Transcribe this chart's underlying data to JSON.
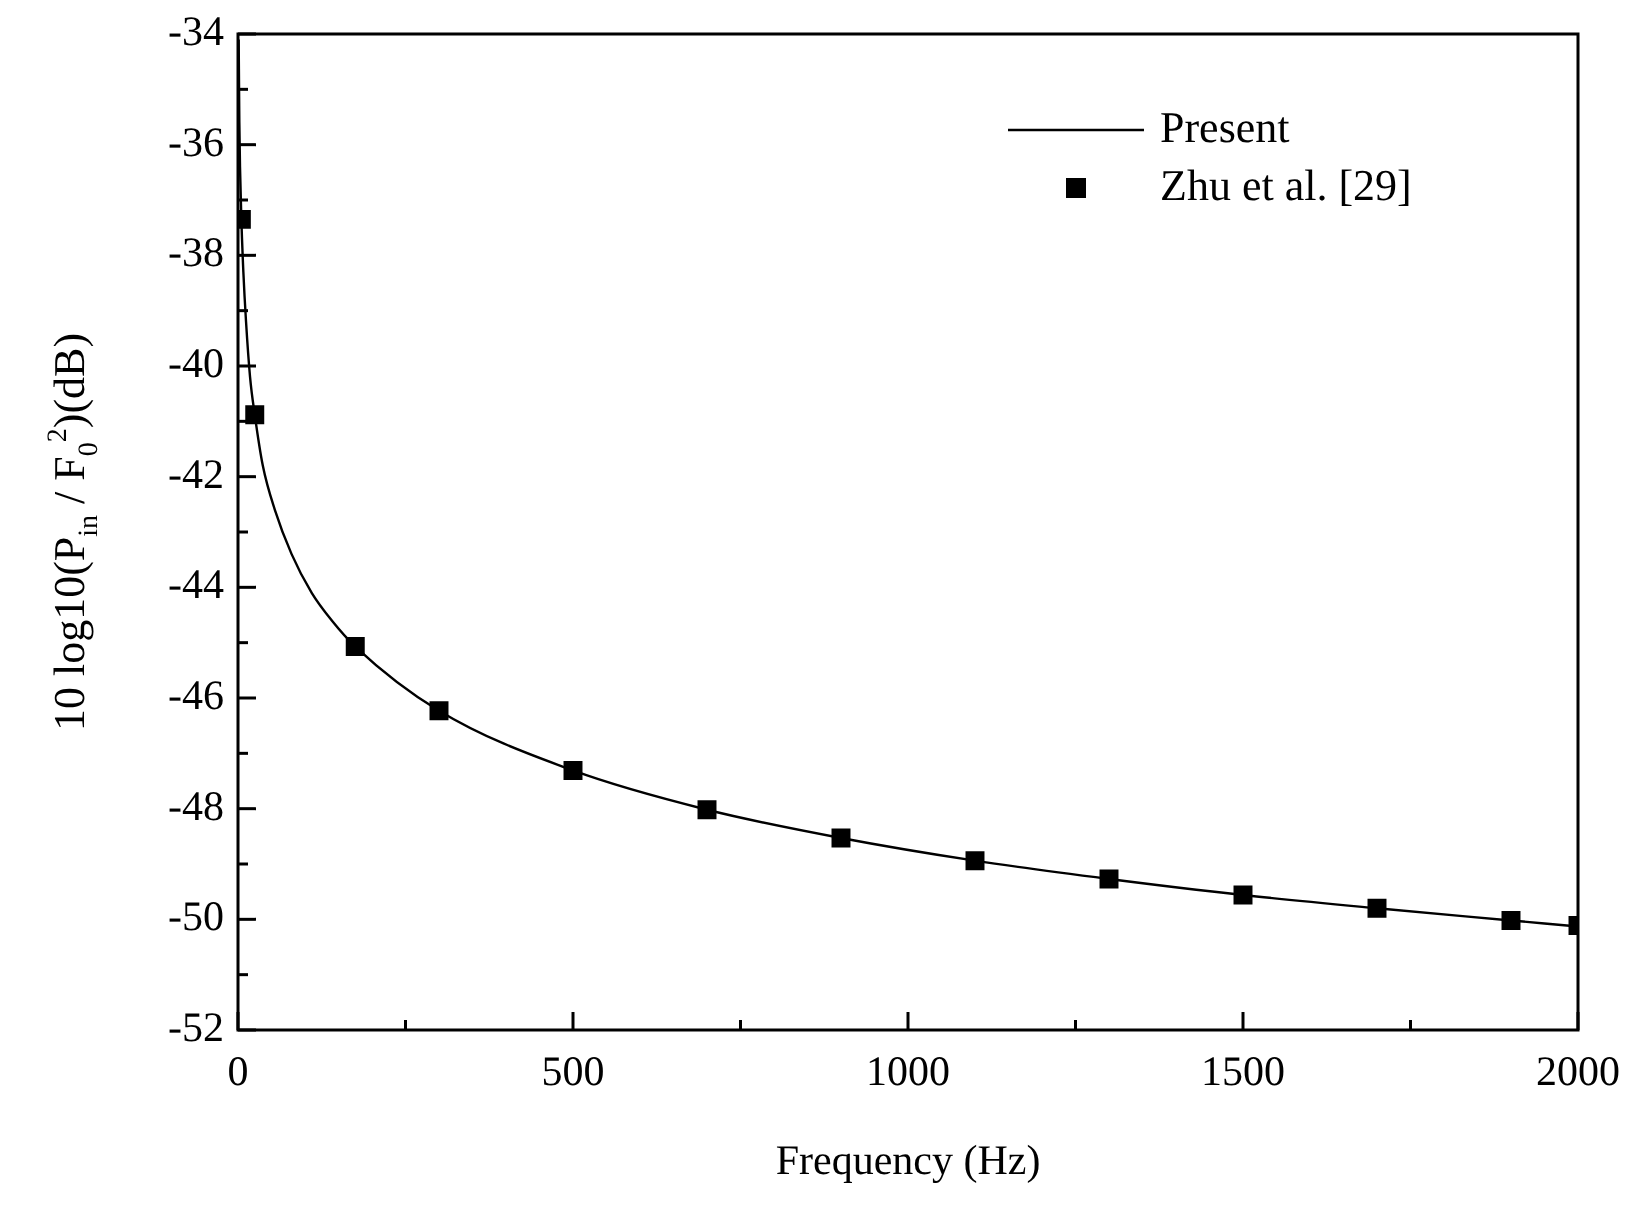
{
  "chart_data": {
    "type": "line",
    "xlabel": "Frequency (Hz)",
    "ylabel": "10 log10(P$_{in}$ / F$_{0}$$^{2}$)(dB)",
    "xlim": [
      0,
      2000
    ],
    "ylim": [
      -52,
      -34
    ],
    "xticks": [
      0,
      {
        "value": 250,
        "label": null
      },
      500,
      {
        "value": 750,
        "label": null
      },
      1000,
      {
        "value": 1250,
        "label": null
      },
      1500,
      {
        "value": 1750,
        "label": null
      },
      2000
    ],
    "yticks": [
      -52,
      {
        "value": -51,
        "label": null
      },
      -50,
      {
        "value": -49,
        "label": null
      },
      -48,
      {
        "value": -47,
        "label": null
      },
      -46,
      {
        "value": -45,
        "label": null
      },
      -44,
      {
        "value": -43,
        "label": null
      },
      -42,
      {
        "value": -41,
        "label": null
      },
      -40,
      {
        "value": -39,
        "label": null
      },
      -38,
      {
        "value": -37,
        "label": null
      },
      -36,
      {
        "value": -35,
        "label": null
      },
      -34
    ],
    "grid": false,
    "legend": "top right",
    "series": [
      {
        "name": "Present",
        "type": "line",
        "color": "#000000",
        "marker": "none",
        "line_style": "solid",
        "x": [
          1,
          2,
          3,
          5,
          8,
          12,
          18,
          25,
          37,
          55,
          80,
          110,
          140,
          175,
          300,
          500,
          700,
          900,
          1100,
          1300,
          1500,
          1700,
          1900,
          2000
        ],
        "values": [
          -34.1,
          -35.6,
          -36.4,
          -37.35,
          -38.3,
          -39.2,
          -40.2,
          -40.88,
          -41.8,
          -42.6,
          -43.4,
          -44.1,
          -44.6,
          -45.07,
          -46.23,
          -47.31,
          -48.02,
          -48.53,
          -48.94,
          -49.27,
          -49.56,
          -49.8,
          -50.02,
          -50.13
        ]
      },
      {
        "name": "Zhu et al. [29]",
        "type": "scatter",
        "color": "#000000",
        "marker": "square",
        "x": [
          5,
          25,
          175,
          300,
          500,
          700,
          900,
          1100,
          1300,
          1500,
          1700,
          1900,
          2000
        ],
        "values": [
          -37.35,
          -40.88,
          -45.07,
          -46.23,
          -47.31,
          -48.02,
          -48.53,
          -48.94,
          -49.27,
          -49.56,
          -49.8,
          -50.02,
          -50.11
        ]
      }
    ]
  }
}
